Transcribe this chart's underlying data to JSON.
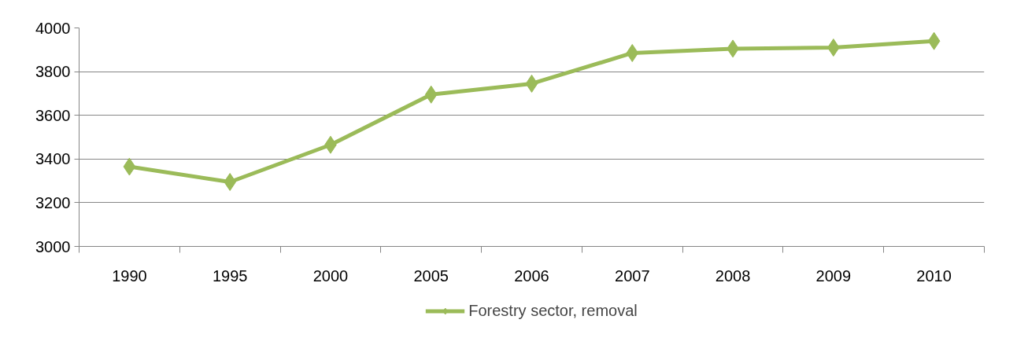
{
  "chart_data": {
    "type": "line",
    "categories": [
      "1990",
      "1995",
      "2000",
      "2005",
      "2006",
      "2007",
      "2008",
      "2009",
      "2010"
    ],
    "series": [
      {
        "name": "Forestry sector, removal",
        "color": "#9bbb59",
        "values": [
          3365,
          3295,
          3465,
          3695,
          3745,
          3885,
          3905,
          3910,
          3940
        ]
      }
    ],
    "ylim": [
      3000,
      4000
    ],
    "yticks": [
      3000,
      3200,
      3400,
      3600,
      3800,
      4000
    ],
    "grid": "y",
    "legend": "bottom",
    "marker": "diamond",
    "line_style": "solid"
  }
}
